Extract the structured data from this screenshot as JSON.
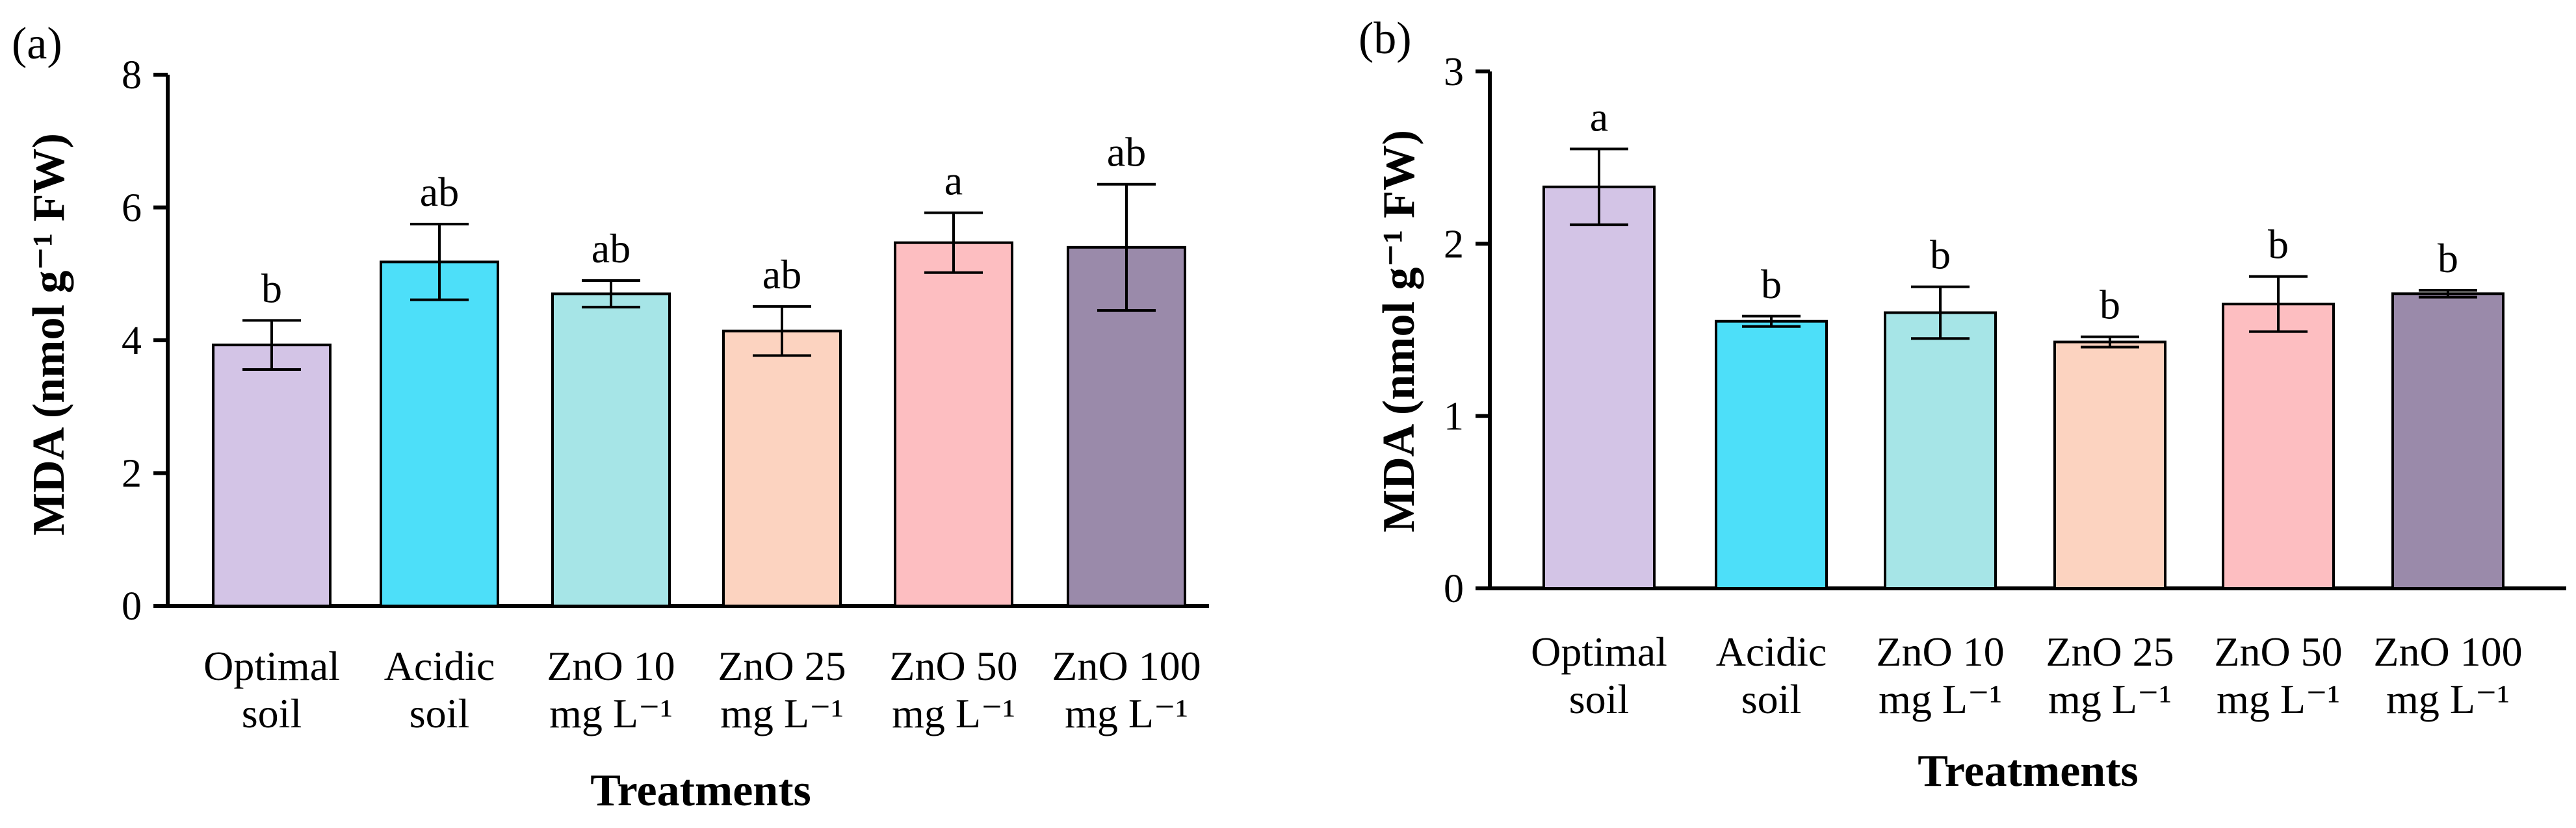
{
  "chart_data": [
    {
      "type": "bar",
      "panel_label": "(a)",
      "title": "",
      "xlabel": "Treatments",
      "ylabel": "MDA (nmol g⁻¹ FW)",
      "ylim": [
        0,
        8
      ],
      "yticks": [
        0,
        2,
        4,
        6,
        8
      ],
      "yticks_text": [
        "0",
        "2",
        "4",
        "6",
        "8"
      ],
      "categories": [
        {
          "line1": "Optimal",
          "line2": "soil"
        },
        {
          "line1": "Acidic",
          "line2": "soil"
        },
        {
          "line1": "ZnO 10",
          "line2": "mg L⁻¹"
        },
        {
          "line1": "ZnO 25",
          "line2": "mg L⁻¹"
        },
        {
          "line1": "ZnO 50",
          "line2": "mg L⁻¹"
        },
        {
          "line1": "ZnO 100",
          "line2": "mg L⁻¹"
        }
      ],
      "values": [
        3.93,
        5.18,
        4.7,
        4.14,
        5.47,
        5.4
      ],
      "errors": [
        0.37,
        0.57,
        0.2,
        0.37,
        0.45,
        0.95
      ],
      "significance": [
        "b",
        "ab",
        "ab",
        "ab",
        "a",
        "ab"
      ],
      "colors": [
        "#d3c4e6",
        "#4ddff9",
        "#a6e5e7",
        "#fcd3c0",
        "#fdbec1",
        "#9a8aaa"
      ]
    },
    {
      "type": "bar",
      "panel_label": "(b)",
      "title": "",
      "xlabel": "Treatments",
      "ylabel": "MDA (nmol g⁻¹ FW)",
      "ylim": [
        0,
        3
      ],
      "yticks": [
        0,
        1,
        2,
        3
      ],
      "yticks_text": [
        "0",
        "1",
        "2",
        "3"
      ],
      "categories": [
        {
          "line1": "Optimal",
          "line2": "soil"
        },
        {
          "line1": "Acidic",
          "line2": "soil"
        },
        {
          "line1": "ZnO 10",
          "line2": "mg L⁻¹"
        },
        {
          "line1": "ZnO 25",
          "line2": "mg L⁻¹"
        },
        {
          "line1": "ZnO 50",
          "line2": "mg L⁻¹"
        },
        {
          "line1": "ZnO 100",
          "line2": "mg L⁻¹"
        }
      ],
      "values": [
        2.33,
        1.55,
        1.6,
        1.43,
        1.65,
        1.71
      ],
      "errors": [
        0.22,
        0.03,
        0.15,
        0.03,
        0.16,
        0.02
      ],
      "significance": [
        "a",
        "b",
        "b",
        "b",
        "b",
        "b"
      ],
      "colors": [
        "#d3c4e6",
        "#4ddff9",
        "#a6e5e7",
        "#fcd3c0",
        "#fdbec1",
        "#9a8aaa"
      ]
    }
  ]
}
